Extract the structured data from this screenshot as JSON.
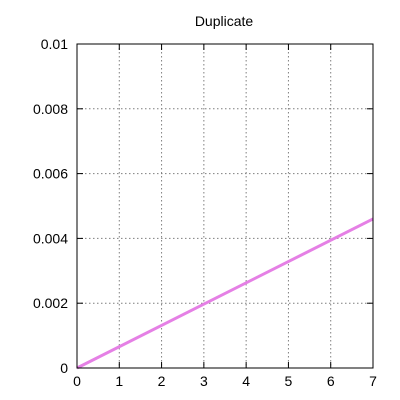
{
  "chart_data": {
    "type": "line",
    "title": "Duplicate",
    "xlabel": "",
    "ylabel": "",
    "xlim": [
      0,
      7
    ],
    "ylim": [
      0,
      0.01
    ],
    "x_ticks": [
      0,
      1,
      2,
      3,
      4,
      5,
      6,
      7
    ],
    "x_tick_labels": [
      "0",
      "1",
      "2",
      "3",
      "4",
      "5",
      "6",
      "7"
    ],
    "y_ticks": [
      0,
      0.002,
      0.004,
      0.006,
      0.008,
      0.01
    ],
    "y_tick_labels": [
      "0",
      "0.002",
      "0.004",
      "0.006",
      "0.008",
      "0.01"
    ],
    "grid": true,
    "series": [
      {
        "color": "#e580e5",
        "x": [
          0,
          7
        ],
        "y": [
          0,
          0.0046
        ]
      }
    ]
  }
}
